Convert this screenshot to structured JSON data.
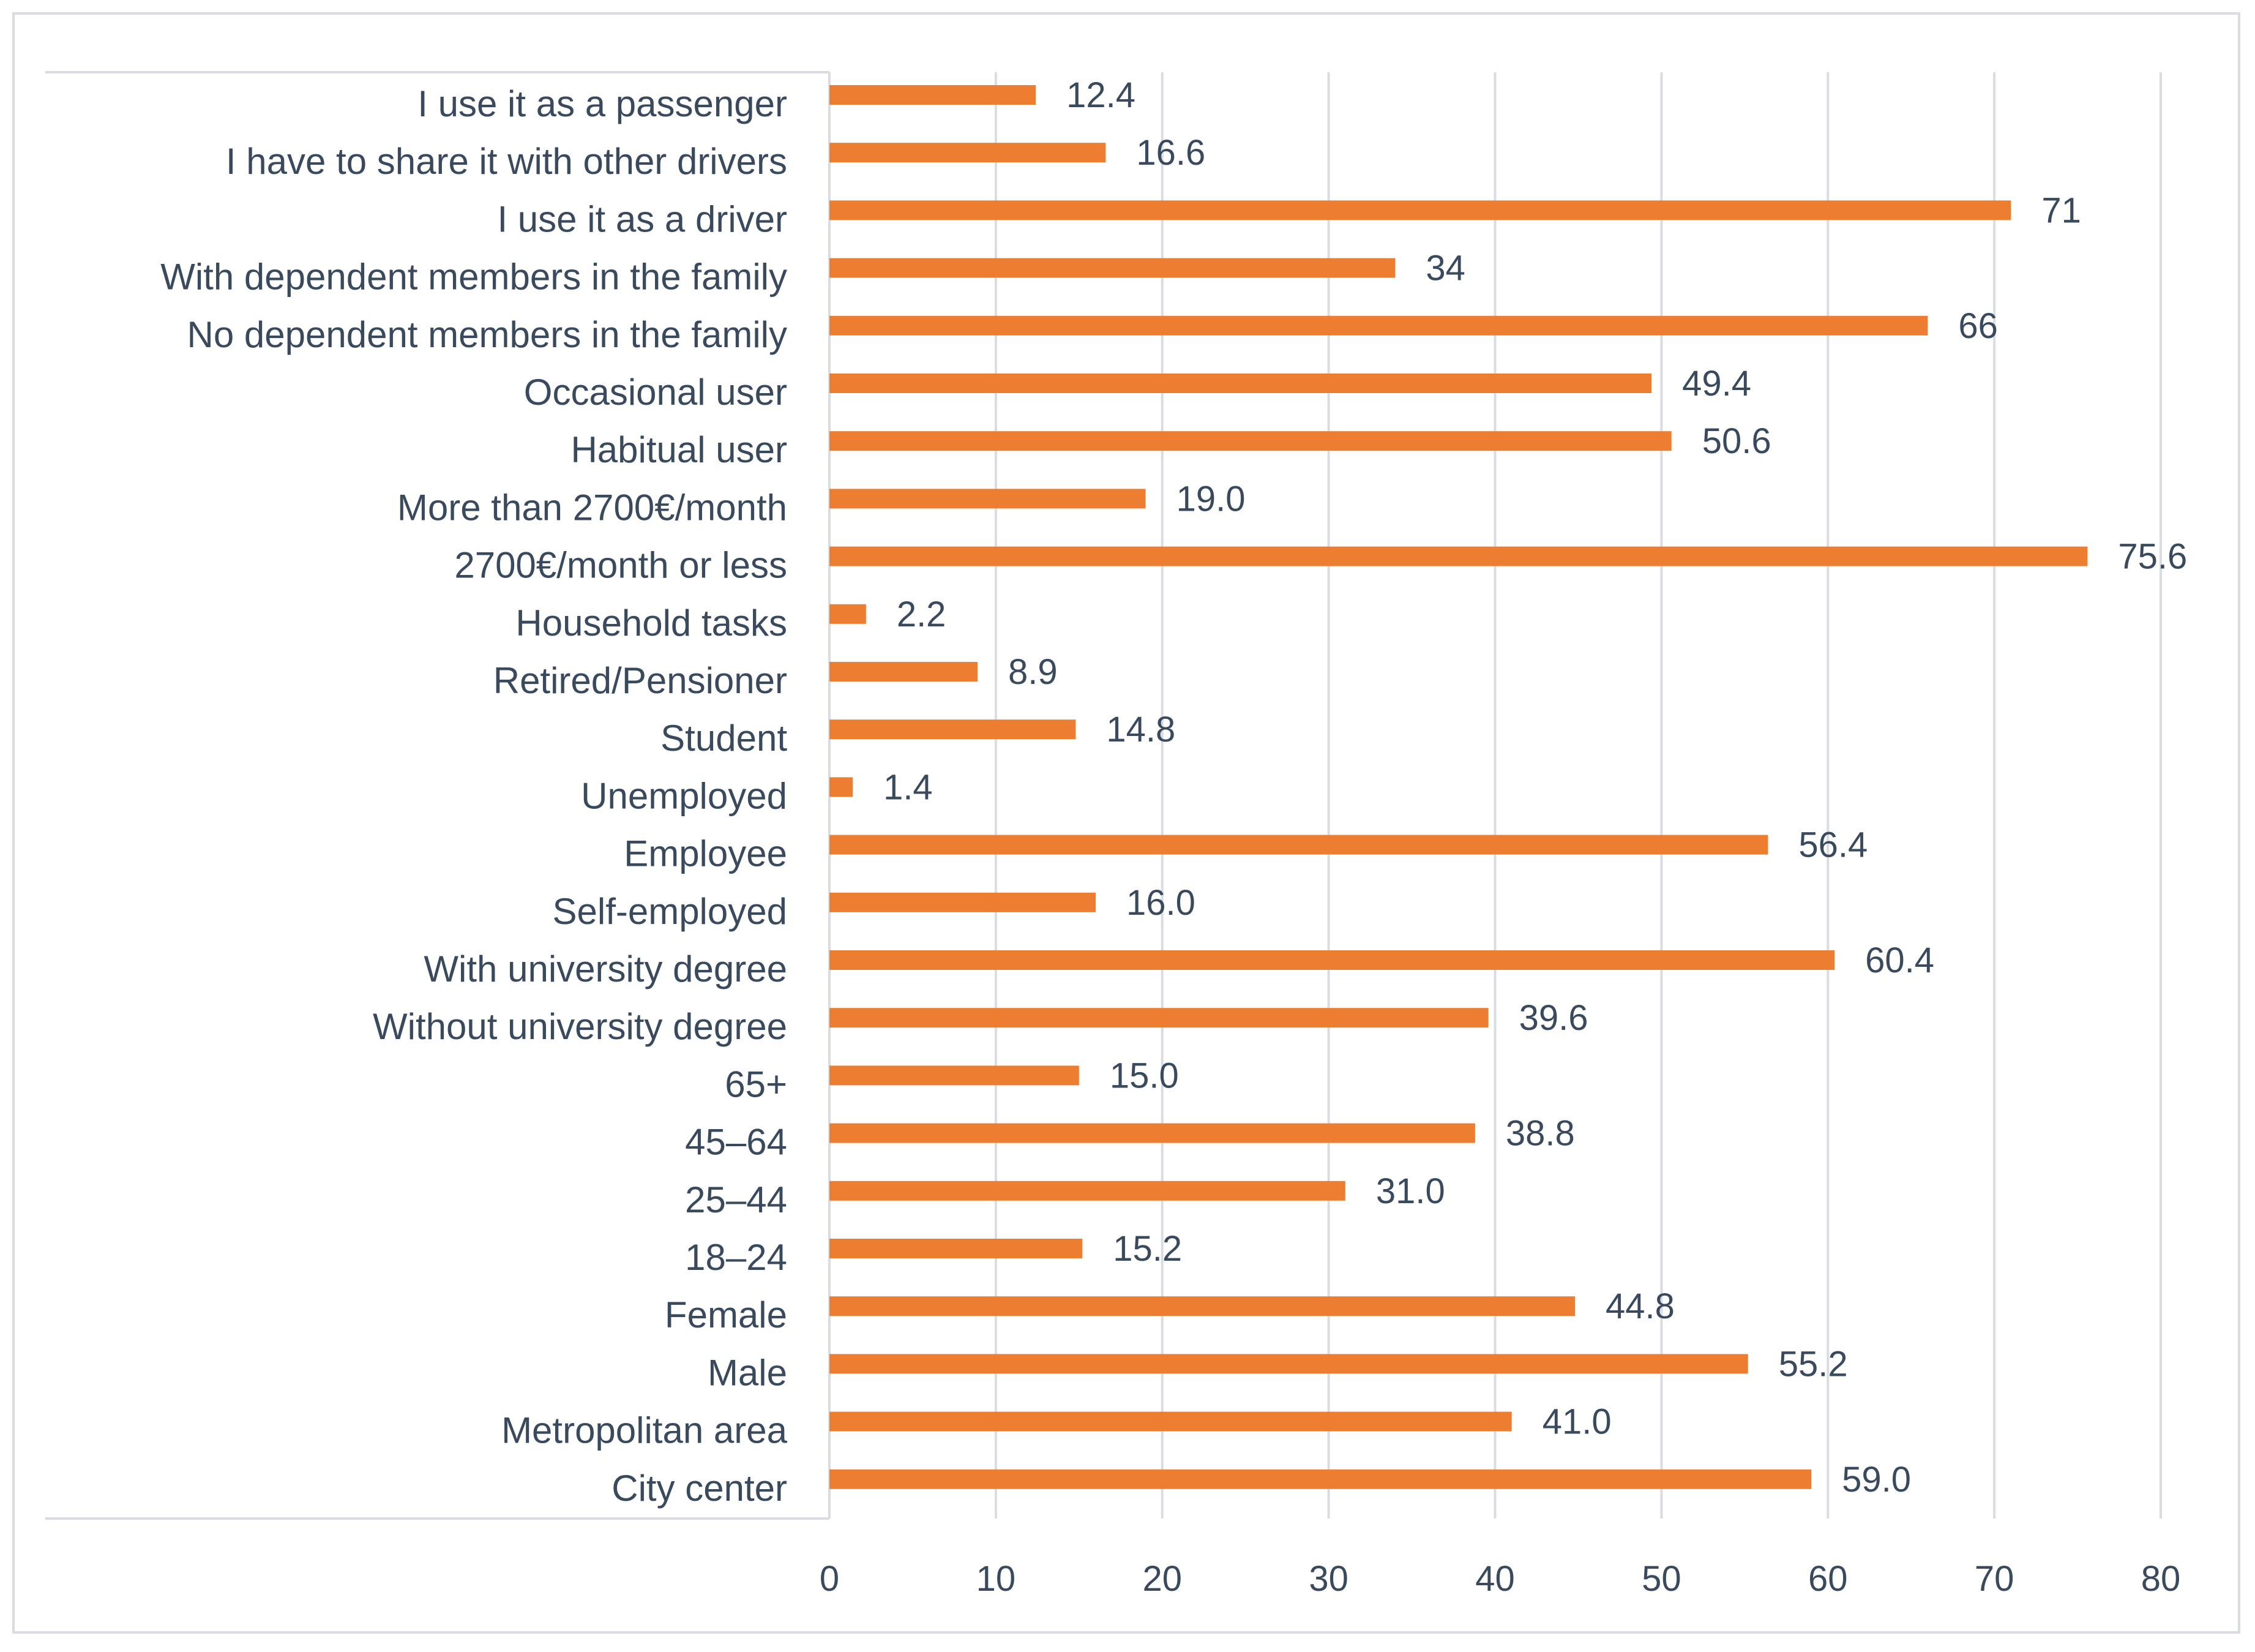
{
  "chart_data": {
    "type": "bar",
    "orientation": "horizontal",
    "title": "",
    "xlabel": "",
    "ylabel": "",
    "xlim": [
      0,
      80
    ],
    "x_ticks": [
      0,
      10,
      20,
      30,
      40,
      50,
      60,
      70,
      80
    ],
    "grid": true,
    "bar_color": "#ed7d31",
    "categories": [
      "I use it as a passenger",
      "I have to share it with other drivers",
      "I use it as a driver",
      "With dependent members in the family",
      "No dependent members in the family",
      "Occasional user",
      "Habitual user",
      "More than 2700€/month",
      "2700€/month or less",
      "Household tasks",
      "Retired/Pensioner",
      "Student",
      "Unemployed",
      "Employee",
      "Self-employed",
      "With university degree",
      "Without university degree",
      "65+",
      "45–64",
      "25–44",
      "18–24",
      "Female",
      "Male",
      "Metropolitan area",
      "City center"
    ],
    "values": [
      12.4,
      16.6,
      71,
      34,
      66,
      49.4,
      50.6,
      19.0,
      75.6,
      2.2,
      8.9,
      14.8,
      1.4,
      56.4,
      16.0,
      60.4,
      39.6,
      15.0,
      38.8,
      31.0,
      15.2,
      44.8,
      55.2,
      41.0,
      59.0
    ],
    "value_labels": [
      "12.4",
      "16.6",
      "71",
      "34",
      "66",
      "49.4",
      "50.6",
      "19.0",
      "75.6",
      "2.2",
      "8.9",
      "14.8",
      "1.4",
      "56.4",
      "16.0",
      "60.4",
      "39.6",
      "15.0",
      "38.8",
      "31.0",
      "15.2",
      "44.8",
      "55.2",
      "41.0",
      "59.0"
    ]
  }
}
